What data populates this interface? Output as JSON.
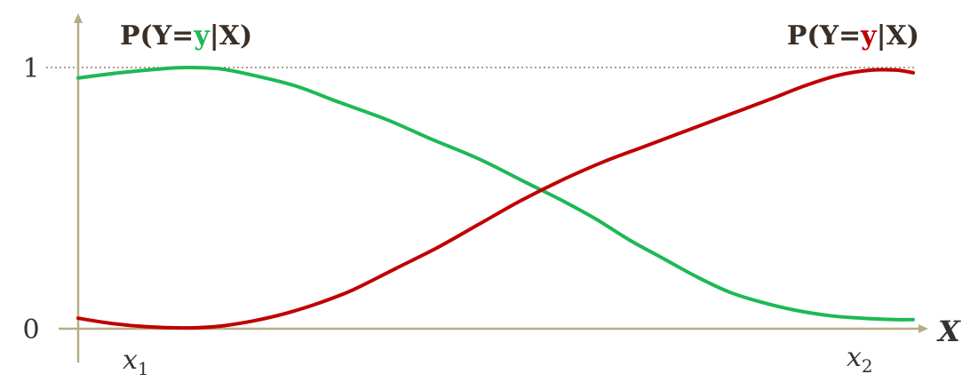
{
  "chart_data": {
    "type": "line",
    "title_left": {
      "prefix": "P(Y=",
      "var": "y",
      "suffix": "|X)",
      "var_color": "#1db954"
    },
    "title_right": {
      "prefix": "P(Y=",
      "var": "y",
      "suffix": "|X)",
      "var_color": "#c00000"
    },
    "xlabel": "X",
    "ylim": [
      0,
      1
    ],
    "y_ticks": [
      {
        "value": 0,
        "label": "0"
      },
      {
        "value": 1,
        "label": "1"
      }
    ],
    "x_points": [
      {
        "sym": "x",
        "sub": "1"
      },
      {
        "sym": "x",
        "sub": "2"
      }
    ],
    "reference_line": {
      "y": 1,
      "style": "dotted"
    },
    "series": [
      {
        "color": "#1db954",
        "x": [
          0.0,
          0.05,
          0.1,
          0.13,
          0.17,
          0.21,
          0.26,
          0.31,
          0.37,
          0.42,
          0.48,
          0.53,
          0.58,
          0.62,
          0.66,
          0.7,
          0.74,
          0.78,
          0.82,
          0.86,
          0.9,
          0.94,
          0.98,
          1.0
        ],
        "y": [
          0.96,
          0.98,
          0.995,
          1.0,
          0.995,
          0.97,
          0.93,
          0.87,
          0.8,
          0.73,
          0.65,
          0.57,
          0.49,
          0.42,
          0.34,
          0.27,
          0.2,
          0.14,
          0.1,
          0.07,
          0.05,
          0.04,
          0.035,
          0.035
        ]
      },
      {
        "color": "#c00000",
        "x": [
          0.0,
          0.04,
          0.08,
          0.13,
          0.17,
          0.21,
          0.25,
          0.29,
          0.33,
          0.38,
          0.43,
          0.48,
          0.53,
          0.58,
          0.63,
          0.68,
          0.73,
          0.78,
          0.83,
          0.87,
          0.91,
          0.95,
          0.98,
          1.0
        ],
        "y": [
          0.04,
          0.02,
          0.008,
          0.003,
          0.01,
          0.03,
          0.06,
          0.1,
          0.15,
          0.23,
          0.31,
          0.4,
          0.49,
          0.57,
          0.64,
          0.7,
          0.76,
          0.82,
          0.88,
          0.93,
          0.97,
          0.99,
          0.99,
          0.98
        ]
      }
    ]
  }
}
